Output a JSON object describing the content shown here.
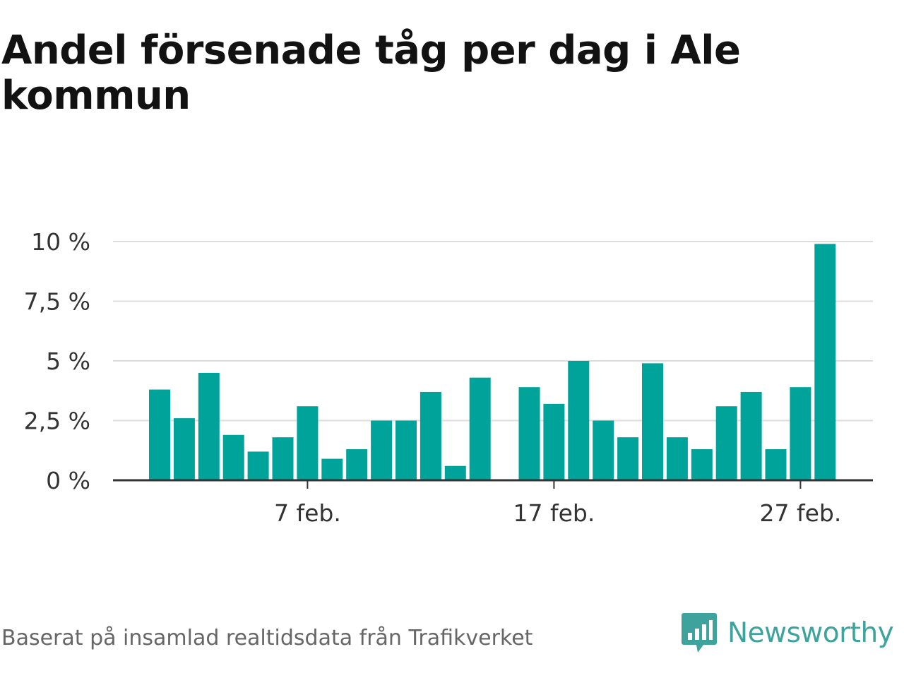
{
  "title": "Andel försenade tåg per dag i Ale kommun",
  "footer": {
    "source": "Baserat på insamlad realtidsdata från Trafikverket",
    "brand": "Newsworthy"
  },
  "colors": {
    "bar": "#00a39a",
    "grid": "#dddddd",
    "axis": "#333333",
    "brand": "#3fa39d"
  },
  "icons": {
    "brand_logo": "newsworthy-logo-icon"
  },
  "chart_data": {
    "type": "bar",
    "title": "Andel försenade tåg per dag i Ale kommun",
    "xlabel": "",
    "ylabel": "",
    "ylim": [
      0,
      10
    ],
    "yticks": [
      {
        "value": 0,
        "label": "0 %"
      },
      {
        "value": 2.5,
        "label": "2,5 %"
      },
      {
        "value": 5,
        "label": "5 %"
      },
      {
        "value": 7.5,
        "label": "7,5 %"
      },
      {
        "value": 10,
        "label": "10 %"
      }
    ],
    "xticks": [
      {
        "day": 7,
        "label": "7 feb."
      },
      {
        "day": 17,
        "label": "17 feb."
      },
      {
        "day": 27,
        "label": "27 feb."
      }
    ],
    "grid": true,
    "legend": "none",
    "days": [
      1,
      2,
      3,
      4,
      5,
      6,
      7,
      8,
      9,
      10,
      11,
      12,
      13,
      14,
      15,
      16,
      17,
      18,
      19,
      20,
      21,
      22,
      23,
      24,
      25,
      26,
      27,
      28
    ],
    "values": [
      3.8,
      2.6,
      4.5,
      1.9,
      1.2,
      1.8,
      3.1,
      0.9,
      1.3,
      2.5,
      2.5,
      3.7,
      0.6,
      4.3,
      null,
      3.9,
      3.2,
      5.0,
      2.5,
      1.8,
      4.9,
      1.8,
      1.3,
      3.1,
      3.7,
      1.3,
      3.9,
      9.9
    ]
  }
}
